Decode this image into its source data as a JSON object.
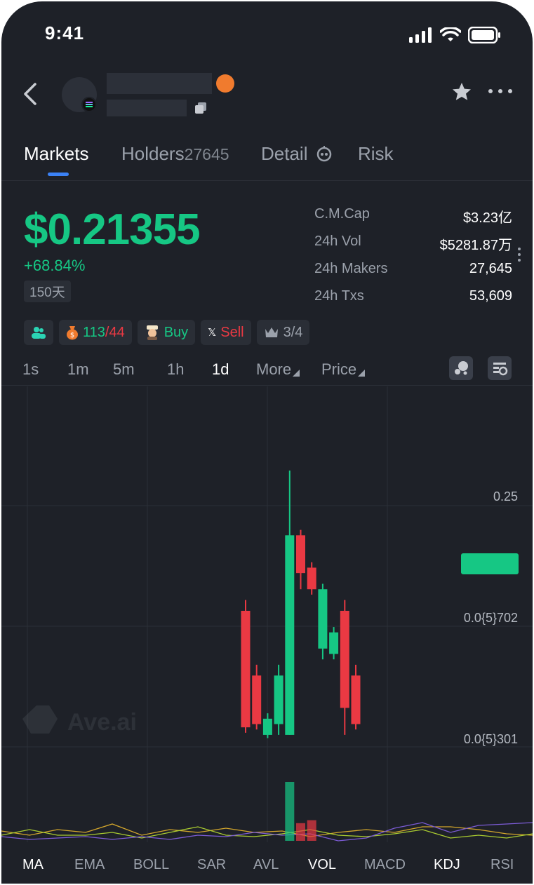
{
  "status_bar": {
    "time": "9:41"
  },
  "tabs": [
    {
      "label": "Markets",
      "count": ""
    },
    {
      "label": "Holders",
      "count": "27645"
    },
    {
      "label": "Detail",
      "count": ""
    },
    {
      "label": "Risk",
      "count": ""
    }
  ],
  "price": {
    "value": "$0.21355",
    "change": "+68.84%",
    "age": "150天"
  },
  "stats": [
    {
      "key": "C.M.Cap",
      "value": "$3.23亿"
    },
    {
      "key": "24h Vol",
      "value": "$5281.87万"
    },
    {
      "key": "24h Makers",
      "value": "27,645"
    },
    {
      "key": "24h Txs",
      "value": "53,609"
    }
  ],
  "chips": {
    "ratio_buy": "113",
    "ratio_sep": "/",
    "ratio_sell": "44",
    "buy": "Buy",
    "sell": "Sell",
    "x_glyph": "𝕏",
    "top": "3/4"
  },
  "intervals": [
    "1s",
    "1m",
    "5m",
    "1h",
    "1d",
    "More",
    "Price"
  ],
  "active_interval": "1d",
  "chart": {
    "watermark": "Ave.ai",
    "y_labels": [
      "0.25",
      "0.0{5}702",
      "0.0{5}301"
    ]
  },
  "chart_data": {
    "type": "candlestick",
    "candles": [
      {
        "open": 0.17,
        "close": 0.062,
        "high": 0.18,
        "low": 0.057
      },
      {
        "open": 0.11,
        "close": 0.065,
        "high": 0.12,
        "low": 0.06
      },
      {
        "open": 0.055,
        "close": 0.07,
        "high": 0.075,
        "low": 0.052
      },
      {
        "open": 0.065,
        "close": 0.11,
        "high": 0.12,
        "low": 0.055
      },
      {
        "open": 0.055,
        "close": 0.24,
        "high": 0.3,
        "low": 0.055
      },
      {
        "open": 0.24,
        "close": 0.205,
        "high": 0.245,
        "low": 0.19
      },
      {
        "open": 0.21,
        "close": 0.19,
        "high": 0.215,
        "low": 0.185
      },
      {
        "open": 0.135,
        "close": 0.19,
        "high": 0.195,
        "low": 0.125
      },
      {
        "open": 0.13,
        "close": 0.15,
        "high": 0.155,
        "low": 0.125
      },
      {
        "open": 0.17,
        "close": 0.08,
        "high": 0.18,
        "low": 0.055
      },
      {
        "open": 0.11,
        "close": 0.065,
        "high": 0.12,
        "low": 0.06
      }
    ],
    "volume": [
      0,
      0,
      0,
      0,
      1.0,
      0.3,
      0.35,
      0,
      0,
      0,
      0
    ],
    "ylim": [
      0.04,
      0.3
    ],
    "colors": {
      "up": "#16c784",
      "down": "#ea3943",
      "current": "#16c784"
    },
    "current_price_marker": 0.21355
  },
  "indicators": [
    "MA",
    "EMA",
    "BOLL",
    "SAR",
    "AVL",
    "VOL",
    "MACD",
    "KDJ",
    "RSI"
  ],
  "active_indicators": [
    "MA",
    "VOL",
    "KDJ"
  ]
}
